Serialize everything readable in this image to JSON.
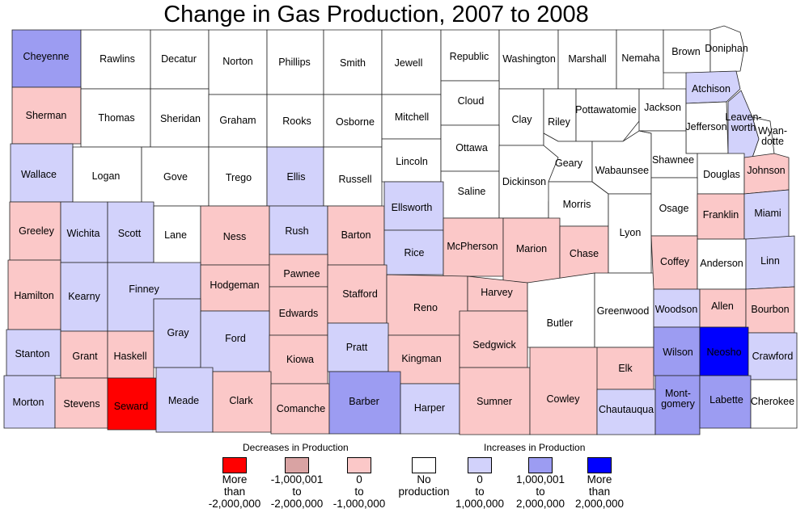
{
  "title": "Change in Gas Production, 2007 to 2008",
  "colors": {
    "decrease_large": "#ff0000",
    "decrease_mid": "#d9a3a3",
    "decrease_small": "#fbc8c8",
    "none": "#ffffff",
    "increase_small": "#d2d2fb",
    "increase_mid": "#9c9cf2",
    "increase_large": "#0000ff"
  },
  "legend": {
    "decreases_heading": "Decreases in Production",
    "increases_heading": "Increases in Production",
    "items": [
      {
        "category": "decrease_large",
        "label": [
          "More",
          "than",
          "-2,000,000"
        ]
      },
      {
        "category": "decrease_mid",
        "label": [
          "-1,000,001",
          "to",
          "-2,000,000"
        ]
      },
      {
        "category": "decrease_small",
        "label": [
          "0",
          "to",
          "-1,000,000"
        ]
      },
      {
        "category": "none",
        "label": [
          "No",
          "production"
        ]
      },
      {
        "category": "increase_small",
        "label": [
          "0",
          "to",
          "1,000,000"
        ]
      },
      {
        "category": "increase_mid",
        "label": [
          "1,000,001",
          "to",
          "2,000,000"
        ]
      },
      {
        "category": "increase_large",
        "label": [
          "More",
          "than",
          "2,000,000"
        ]
      }
    ]
  },
  "counties": [
    {
      "name": "Cheyenne",
      "category": "increase_mid"
    },
    {
      "name": "Rawlins",
      "category": "none"
    },
    {
      "name": "Decatur",
      "category": "none"
    },
    {
      "name": "Norton",
      "category": "none"
    },
    {
      "name": "Phillips",
      "category": "none"
    },
    {
      "name": "Smith",
      "category": "none"
    },
    {
      "name": "Jewell",
      "category": "none"
    },
    {
      "name": "Republic",
      "category": "none"
    },
    {
      "name": "Washington",
      "category": "none"
    },
    {
      "name": "Marshall",
      "category": "none"
    },
    {
      "name": "Nemaha",
      "category": "none"
    },
    {
      "name": "Brown",
      "category": "none"
    },
    {
      "name": "Doniphan",
      "category": "none"
    },
    {
      "name": "Sherman",
      "category": "decrease_small"
    },
    {
      "name": "Thomas",
      "category": "none"
    },
    {
      "name": "Sheridan",
      "category": "none"
    },
    {
      "name": "Graham",
      "category": "none"
    },
    {
      "name": "Rooks",
      "category": "none"
    },
    {
      "name": "Osborne",
      "category": "none"
    },
    {
      "name": "Mitchell",
      "category": "none"
    },
    {
      "name": "Cloud",
      "category": "none"
    },
    {
      "name": "Clay",
      "category": "none"
    },
    {
      "name": "Riley",
      "category": "none"
    },
    {
      "name": "Pottawatomie",
      "category": "none"
    },
    {
      "name": "Jackson",
      "category": "none"
    },
    {
      "name": "Atchison",
      "category": "increase_small"
    },
    {
      "name": "Jefferson",
      "category": "none"
    },
    {
      "name": "Leaven-worth",
      "category": "increase_small"
    },
    {
      "name": "Wyan-dotte",
      "category": "none"
    },
    {
      "name": "Wallace",
      "category": "increase_small"
    },
    {
      "name": "Logan",
      "category": "none"
    },
    {
      "name": "Gove",
      "category": "none"
    },
    {
      "name": "Trego",
      "category": "none"
    },
    {
      "name": "Ellis",
      "category": "increase_small"
    },
    {
      "name": "Russell",
      "category": "none"
    },
    {
      "name": "Lincoln",
      "category": "none"
    },
    {
      "name": "Ottawa",
      "category": "none"
    },
    {
      "name": "Saline",
      "category": "none"
    },
    {
      "name": "Dickinson",
      "category": "none"
    },
    {
      "name": "Geary",
      "category": "none"
    },
    {
      "name": "Morris",
      "category": "none"
    },
    {
      "name": "Wabaunsee",
      "category": "none"
    },
    {
      "name": "Shawnee",
      "category": "none"
    },
    {
      "name": "Douglas",
      "category": "none"
    },
    {
      "name": "Johnson",
      "category": "decrease_small"
    },
    {
      "name": "Greeley",
      "category": "decrease_small"
    },
    {
      "name": "Wichita",
      "category": "increase_small"
    },
    {
      "name": "Scott",
      "category": "increase_small"
    },
    {
      "name": "Lane",
      "category": "none"
    },
    {
      "name": "Ness",
      "category": "decrease_small"
    },
    {
      "name": "Rush",
      "category": "increase_small"
    },
    {
      "name": "Barton",
      "category": "decrease_small"
    },
    {
      "name": "Ellsworth",
      "category": "increase_small"
    },
    {
      "name": "Rice",
      "category": "increase_small"
    },
    {
      "name": "McPherson",
      "category": "decrease_small"
    },
    {
      "name": "Marion",
      "category": "decrease_small"
    },
    {
      "name": "Chase",
      "category": "decrease_small"
    },
    {
      "name": "Lyon",
      "category": "none"
    },
    {
      "name": "Osage",
      "category": "none"
    },
    {
      "name": "Franklin",
      "category": "decrease_small"
    },
    {
      "name": "Miami",
      "category": "increase_small"
    },
    {
      "name": "Hamilton",
      "category": "decrease_small"
    },
    {
      "name": "Kearny",
      "category": "increase_small"
    },
    {
      "name": "Finney",
      "category": "increase_small"
    },
    {
      "name": "Hodgeman",
      "category": "decrease_small"
    },
    {
      "name": "Pawnee",
      "category": "decrease_small"
    },
    {
      "name": "Edwards",
      "category": "decrease_small"
    },
    {
      "name": "Stafford",
      "category": "decrease_small"
    },
    {
      "name": "Reno",
      "category": "decrease_small"
    },
    {
      "name": "Harvey",
      "category": "decrease_small"
    },
    {
      "name": "Butler",
      "category": "none"
    },
    {
      "name": "Greenwood",
      "category": "none"
    },
    {
      "name": "Coffey",
      "category": "decrease_small"
    },
    {
      "name": "Anderson",
      "category": "none"
    },
    {
      "name": "Linn",
      "category": "increase_small"
    },
    {
      "name": "Woodson",
      "category": "increase_small"
    },
    {
      "name": "Allen",
      "category": "decrease_small"
    },
    {
      "name": "Bourbon",
      "category": "decrease_small"
    },
    {
      "name": "Stanton",
      "category": "increase_small"
    },
    {
      "name": "Grant",
      "category": "decrease_small"
    },
    {
      "name": "Haskell",
      "category": "decrease_small"
    },
    {
      "name": "Gray",
      "category": "increase_small"
    },
    {
      "name": "Ford",
      "category": "increase_small"
    },
    {
      "name": "Kiowa",
      "category": "decrease_small"
    },
    {
      "name": "Pratt",
      "category": "increase_small"
    },
    {
      "name": "Kingman",
      "category": "decrease_small"
    },
    {
      "name": "Sedgwick",
      "category": "decrease_small"
    },
    {
      "name": "Elk",
      "category": "decrease_small"
    },
    {
      "name": "Wilson",
      "category": "increase_mid"
    },
    {
      "name": "Neosho",
      "category": "increase_large"
    },
    {
      "name": "Crawford",
      "category": "increase_small"
    },
    {
      "name": "Morton",
      "category": "increase_small"
    },
    {
      "name": "Stevens",
      "category": "decrease_small"
    },
    {
      "name": "Seward",
      "category": "decrease_large"
    },
    {
      "name": "Meade",
      "category": "increase_small"
    },
    {
      "name": "Clark",
      "category": "decrease_small"
    },
    {
      "name": "Comanche",
      "category": "decrease_small"
    },
    {
      "name": "Barber",
      "category": "increase_mid"
    },
    {
      "name": "Harper",
      "category": "increase_small"
    },
    {
      "name": "Sumner",
      "category": "decrease_small"
    },
    {
      "name": "Cowley",
      "category": "decrease_small"
    },
    {
      "name": "Chautauqua",
      "category": "increase_small"
    },
    {
      "name": "Mont-gomery",
      "category": "increase_mid"
    },
    {
      "name": "Labette",
      "category": "increase_mid"
    },
    {
      "name": "Cherokee",
      "category": "none"
    }
  ]
}
